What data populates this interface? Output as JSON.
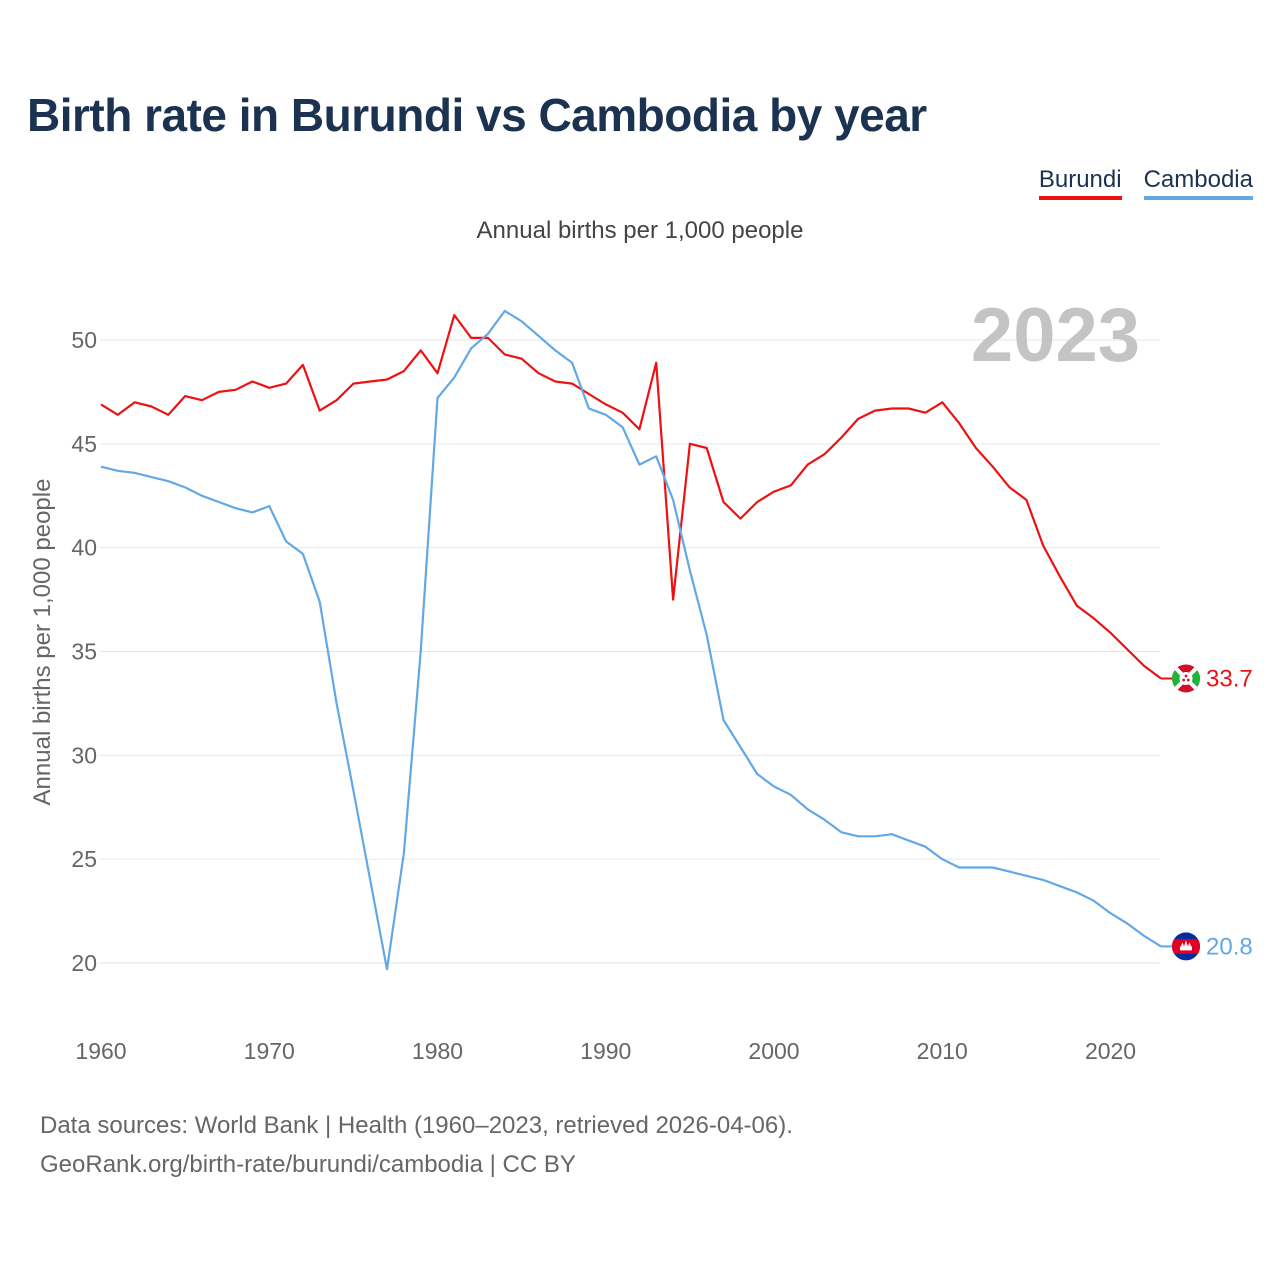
{
  "title": "Birth rate in Burundi vs Cambodia by year",
  "subtitle": "Annual births per 1,000 people",
  "legend": [
    {
      "label": "Burundi",
      "color": "#ee1111"
    },
    {
      "label": "Cambodia",
      "color": "#62a8e5"
    }
  ],
  "year_overlay": "2023",
  "source": {
    "line1": "Data sources: World Bank | Health (1960–2023, retrieved 2026-04-06).",
    "line2": "GeoRank.org/birth-rate/burundi/cambodia | CC BY"
  },
  "chart_data": {
    "type": "line",
    "title": "Birth rate in Burundi vs Cambodia by year",
    "ylabel": "Annual births per 1,000 people",
    "xlabel": "",
    "xlim": [
      1960,
      2023
    ],
    "ylim": [
      17,
      53
    ],
    "x_ticks": [
      1960,
      1970,
      1980,
      1990,
      2000,
      2010,
      2020
    ],
    "y_ticks": [
      20,
      25,
      30,
      35,
      40,
      45,
      50
    ],
    "grid": true,
    "x": [
      1960,
      1961,
      1962,
      1963,
      1964,
      1965,
      1966,
      1967,
      1968,
      1969,
      1970,
      1971,
      1972,
      1973,
      1974,
      1975,
      1976,
      1977,
      1978,
      1979,
      1980,
      1981,
      1982,
      1983,
      1984,
      1985,
      1986,
      1987,
      1988,
      1989,
      1990,
      1991,
      1992,
      1993,
      1994,
      1995,
      1996,
      1997,
      1998,
      1999,
      2000,
      2001,
      2002,
      2003,
      2004,
      2005,
      2006,
      2007,
      2008,
      2009,
      2010,
      2011,
      2012,
      2013,
      2014,
      2015,
      2016,
      2017,
      2018,
      2019,
      2020,
      2021,
      2022,
      2023
    ],
    "series": [
      {
        "name": "Burundi",
        "color": "#ee1111",
        "end_label": "33.7",
        "values": [
          46.9,
          46.4,
          47.0,
          46.8,
          46.4,
          47.3,
          47.1,
          47.5,
          47.6,
          48.0,
          47.7,
          47.9,
          48.8,
          46.6,
          47.1,
          47.9,
          48.0,
          48.1,
          48.5,
          49.5,
          48.4,
          51.2,
          50.1,
          50.1,
          49.3,
          49.1,
          48.4,
          48.0,
          47.9,
          47.4,
          46.9,
          46.5,
          45.7,
          48.9,
          37.5,
          45.0,
          44.8,
          42.2,
          41.4,
          42.2,
          42.7,
          43.0,
          44.0,
          44.5,
          45.3,
          46.2,
          46.6,
          46.7,
          46.7,
          46.5,
          47.0,
          46.0,
          44.8,
          43.9,
          42.9,
          42.3,
          40.1,
          38.6,
          37.2,
          36.6,
          35.9,
          35.1,
          34.3,
          33.7
        ]
      },
      {
        "name": "Cambodia",
        "color": "#62a8e5",
        "end_label": "20.8",
        "values": [
          43.9,
          43.7,
          43.6,
          43.4,
          43.2,
          42.9,
          42.5,
          42.2,
          41.9,
          41.7,
          42.0,
          40.3,
          39.7,
          37.4,
          32.5,
          28.3,
          24.0,
          19.7,
          25.3,
          35.0,
          47.2,
          48.2,
          49.6,
          50.3,
          51.4,
          50.9,
          50.2,
          49.5,
          48.9,
          46.7,
          46.4,
          45.8,
          44.0,
          44.4,
          42.3,
          38.9,
          35.8,
          31.7,
          30.4,
          29.1,
          28.5,
          28.1,
          27.4,
          26.9,
          26.3,
          26.1,
          26.1,
          26.2,
          25.9,
          25.6,
          25.0,
          24.6,
          24.6,
          24.6,
          24.4,
          24.2,
          24.0,
          23.7,
          23.4,
          23.0,
          22.4,
          21.9,
          21.3,
          20.8
        ]
      }
    ]
  }
}
